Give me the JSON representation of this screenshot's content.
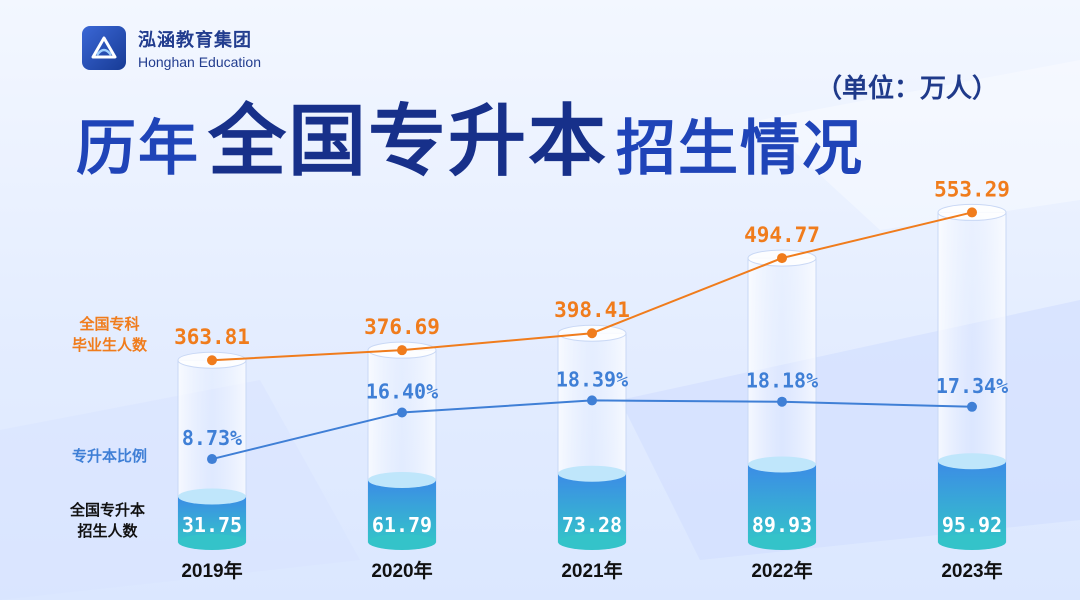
{
  "brand": {
    "name_cn": "泓涵教育集团",
    "name_en": "Honghan Education"
  },
  "title": {
    "part1": "历年",
    "part2": "全国专升本",
    "part3": "招生情况"
  },
  "unit": "（单位：万人）",
  "legend": {
    "graduates_line1": "全国专科",
    "graduates_line2": "毕业生人数",
    "ratio": "专升本比例",
    "enroll_line1": "全国专升本",
    "enroll_line2": "招生人数"
  },
  "colors": {
    "graduates": "#f07c1c",
    "ratio": "#3f7fd6",
    "enroll_top": "#3c8ce6",
    "enroll_bottom": "#34c3c9",
    "title": "#1f44b8"
  },
  "chart_data": {
    "type": "bar",
    "categories": [
      "2019年",
      "2020年",
      "2021年",
      "2022年",
      "2023年"
    ],
    "series": [
      {
        "name": "全国专升本招生人数",
        "kind": "bar",
        "values": [
          31.75,
          61.79,
          73.28,
          89.93,
          95.92
        ],
        "labels": [
          "31.75",
          "61.79",
          "73.28",
          "89.93",
          "95.92"
        ]
      },
      {
        "name": "全国专科毕业生人数",
        "kind": "line",
        "values": [
          363.81,
          376.69,
          398.41,
          494.77,
          553.29
        ],
        "labels": [
          "363.81",
          "376.69",
          "398.41",
          "494.77",
          "553.29"
        ]
      },
      {
        "name": "专升本比例",
        "kind": "line",
        "values": [
          8.73,
          16.4,
          18.39,
          18.18,
          17.34
        ],
        "labels": [
          "8.73%",
          "16.40%",
          "18.39%",
          "18.18%",
          "17.34%"
        ]
      }
    ],
    "unit": "（单位：万人）"
  }
}
